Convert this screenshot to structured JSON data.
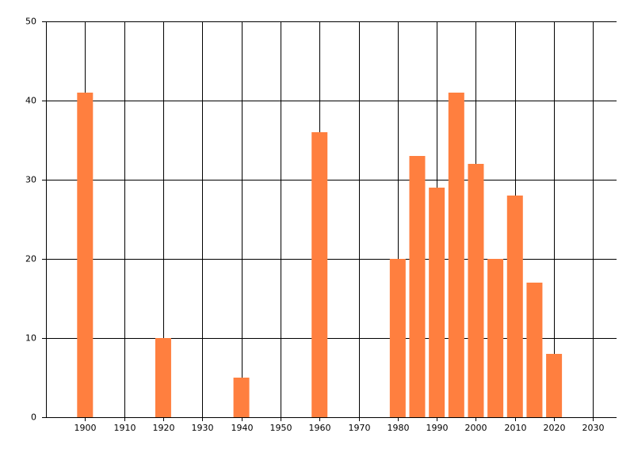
{
  "chart_data": {
    "type": "bar",
    "x": [
      1900,
      1920,
      1940,
      1960,
      1980,
      1985,
      1990,
      1995,
      2000,
      2005,
      2010,
      2015,
      2020
    ],
    "values": [
      41,
      10,
      5,
      36,
      20,
      33,
      29,
      41,
      32,
      20,
      28,
      17,
      8
    ],
    "color": "#ff7f3f",
    "xlim": [
      1890,
      2036
    ],
    "xticks": [
      1900,
      1910,
      1920,
      1930,
      1940,
      1950,
      1960,
      1970,
      1980,
      1990,
      2000,
      2010,
      2020,
      2030
    ],
    "ylim": [
      0,
      50
    ],
    "yticks": [
      0,
      10,
      20,
      30,
      40,
      50
    ],
    "grid": true
  }
}
